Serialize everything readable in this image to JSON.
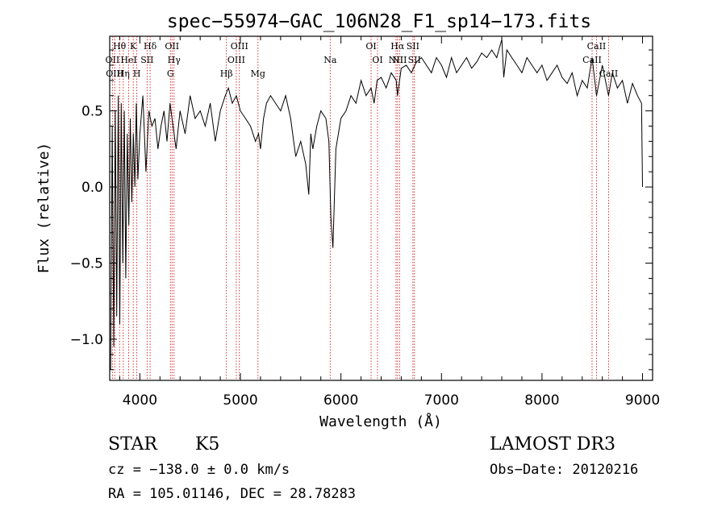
{
  "chart_data": {
    "type": "line",
    "title": "spec−55974−GAC_106N28_F1_sp14−173.fits",
    "xlabel": "Wavelength (Å)",
    "ylabel": "Flux (relative)",
    "xlim": [
      3700,
      9100
    ],
    "ylim": [
      -1.27,
      0.99
    ],
    "xticks": [
      4000,
      5000,
      6000,
      7000,
      8000,
      9000
    ],
    "xtick_labels": [
      "4000",
      "5000",
      "6000",
      "7000",
      "8000",
      "9000"
    ],
    "yticks": [
      -1.0,
      -0.5,
      0.0,
      0.5
    ],
    "ytick_labels": [
      "−1.0",
      "−0.5",
      "0.0",
      "0.5"
    ],
    "series": [
      {
        "name": "spectrum",
        "x": [
          3710,
          3725,
          3740,
          3755,
          3770,
          3785,
          3800,
          3815,
          3830,
          3845,
          3860,
          3875,
          3890,
          3905,
          3920,
          3935,
          3950,
          3965,
          3980,
          4000,
          4030,
          4060,
          4090,
          4120,
          4150,
          4180,
          4210,
          4240,
          4270,
          4300,
          4330,
          4360,
          4400,
          4450,
          4500,
          4550,
          4600,
          4650,
          4700,
          4750,
          4800,
          4850,
          4880,
          4920,
          4960,
          5000,
          5050,
          5100,
          5150,
          5180,
          5200,
          5230,
          5260,
          5300,
          5350,
          5400,
          5450,
          5500,
          5550,
          5600,
          5650,
          5680,
          5700,
          5720,
          5760,
          5800,
          5850,
          5880,
          5900,
          5920,
          5950,
          6000,
          6050,
          6100,
          6150,
          6200,
          6250,
          6300,
          6330,
          6360,
          6400,
          6450,
          6500,
          6550,
          6563,
          6600,
          6650,
          6700,
          6750,
          6800,
          6850,
          6900,
          6950,
          7000,
          7050,
          7100,
          7150,
          7200,
          7250,
          7300,
          7350,
          7400,
          7450,
          7500,
          7550,
          7600,
          7620,
          7650,
          7700,
          7750,
          7800,
          7850,
          7900,
          7950,
          8000,
          8050,
          8100,
          8150,
          8200,
          8250,
          8300,
          8350,
          8400,
          8450,
          8498,
          8542,
          8600,
          8662,
          8700,
          8750,
          8800,
          8850,
          8900,
          8950,
          8990,
          9000
        ],
        "y": [
          -1.2,
          0.4,
          -1.05,
          0.5,
          -0.85,
          0.6,
          -0.9,
          0.55,
          -0.5,
          0.5,
          -0.6,
          0.35,
          -0.25,
          0.45,
          -0.1,
          0.35,
          0.0,
          0.55,
          0.05,
          0.35,
          0.6,
          0.1,
          0.5,
          0.4,
          0.45,
          0.25,
          0.4,
          0.5,
          0.3,
          0.55,
          0.4,
          0.25,
          0.5,
          0.35,
          0.6,
          0.45,
          0.5,
          0.4,
          0.55,
          0.3,
          0.5,
          0.6,
          0.65,
          0.55,
          0.6,
          0.5,
          0.45,
          0.4,
          0.3,
          0.35,
          0.25,
          0.45,
          0.55,
          0.6,
          0.55,
          0.5,
          0.6,
          0.45,
          0.2,
          0.3,
          0.15,
          -0.05,
          0.35,
          0.25,
          0.4,
          0.5,
          0.45,
          0.3,
          -0.2,
          -0.4,
          0.25,
          0.45,
          0.5,
          0.6,
          0.55,
          0.7,
          0.6,
          0.65,
          0.55,
          0.7,
          0.72,
          0.65,
          0.75,
          0.7,
          0.6,
          0.78,
          0.8,
          0.75,
          0.82,
          0.85,
          0.8,
          0.75,
          0.85,
          0.8,
          0.72,
          0.85,
          0.75,
          0.8,
          0.85,
          0.78,
          0.82,
          0.88,
          0.85,
          0.9,
          0.85,
          0.97,
          0.72,
          0.9,
          0.85,
          0.8,
          0.75,
          0.85,
          0.8,
          0.75,
          0.8,
          0.7,
          0.75,
          0.8,
          0.72,
          0.68,
          0.75,
          0.6,
          0.7,
          0.65,
          0.85,
          0.6,
          0.8,
          0.6,
          0.75,
          0.65,
          0.7,
          0.55,
          0.68,
          0.6,
          0.55,
          0.0
        ]
      }
    ],
    "lines": [
      {
        "label": "Hθ",
        "wavelength": 3798,
        "row": 1
      },
      {
        "label": "K",
        "wavelength": 3934,
        "row": 1
      },
      {
        "label": "Hδ",
        "wavelength": 4102,
        "row": 1
      },
      {
        "label": "OII",
        "wavelength": 4320,
        "row": 1
      },
      {
        "label": "OIII",
        "wavelength": 4990,
        "row": 1
      },
      {
        "label": "OI",
        "wavelength": 6300,
        "row": 1
      },
      {
        "label": "Hα",
        "wavelength": 6563,
        "row": 1
      },
      {
        "label": "SII",
        "wavelength": 6716,
        "row": 1
      },
      {
        "label": "CaII",
        "wavelength": 8542,
        "row": 1
      },
      {
        "label": "OII",
        "wavelength": 3727,
        "row": 2
      },
      {
        "label": "HeI",
        "wavelength": 3889,
        "row": 2
      },
      {
        "label": "SII",
        "wavelength": 4072,
        "row": 2
      },
      {
        "label": "Hγ",
        "wavelength": 4340,
        "row": 2
      },
      {
        "label": "OIII",
        "wavelength": 4959,
        "row": 2
      },
      {
        "label": "Na",
        "wavelength": 5893,
        "row": 2
      },
      {
        "label": "OI",
        "wavelength": 6364,
        "row": 2
      },
      {
        "label": "NII",
        "wavelength": 6548,
        "row": 2
      },
      {
        "label": "NII",
        "wavelength": 6583,
        "row": 2
      },
      {
        "label": "SII",
        "wavelength": 6731,
        "row": 2
      },
      {
        "label": "CaII",
        "wavelength": 8498,
        "row": 2
      },
      {
        "label": "OIII",
        "wavelength": 3750,
        "row": 3
      },
      {
        "label": "Hη",
        "wavelength": 3835,
        "row": 3
      },
      {
        "label": "H",
        "wavelength": 3970,
        "row": 3
      },
      {
        "label": "G",
        "wavelength": 4304,
        "row": 3
      },
      {
        "label": "Hβ",
        "wavelength": 4861,
        "row": 3
      },
      {
        "label": "Mg",
        "wavelength": 5175,
        "row": 3
      },
      {
        "label": "CaII",
        "wavelength": 8662,
        "row": 3
      }
    ]
  },
  "footer": {
    "object_class": "STAR",
    "subclass": "K5",
    "survey": "LAMOST DR3",
    "redshift": "cz = −138.0 ± 0.0 km/s",
    "obs_date": "Obs−Date: 20120216",
    "coords": "RA = 105.01146, DEC =  28.78283"
  },
  "colors": {
    "spectrum": "#000000",
    "lines": "#cc0000"
  }
}
